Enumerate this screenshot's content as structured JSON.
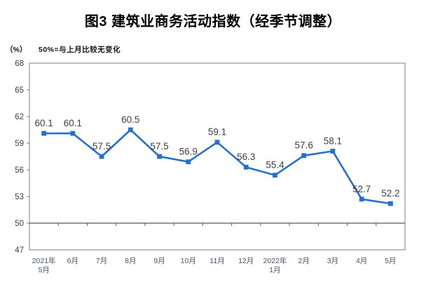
{
  "header": {
    "title": "图3 建筑业商务活动指数（经季节调整）",
    "unit_label": "（%）",
    "note": "50%=与上月比较无变化"
  },
  "colors": {
    "line": "#2770C8",
    "marker": "#2770C8",
    "data_label": "#3F3F3F",
    "y_tick_label": "#3F3F3F",
    "x_tick_label": "#44546A",
    "plot_border": "#7F7F7F",
    "reference_line": "#595959",
    "background": "#FFFFFF"
  },
  "chart_data": {
    "type": "line",
    "title": "图3 建筑业商务活动指数（经季节调整）",
    "subtitle": "50%=与上月比较无变化",
    "unit": "（%）",
    "categories": [
      "2021年\n5月",
      "6月",
      "7月",
      "8月",
      "9月",
      "10月",
      "11月",
      "12月",
      "2022年\n1月",
      "2月",
      "3月",
      "4月",
      "5月"
    ],
    "values": [
      60.1,
      60.1,
      57.5,
      60.5,
      57.5,
      56.9,
      59.1,
      56.3,
      55.4,
      57.6,
      58.1,
      52.7,
      52.2
    ],
    "series_name": "建筑业商务活动指数",
    "xlabel": "",
    "ylabel": "%",
    "ylim": [
      47,
      68
    ],
    "ytick_step": 3,
    "ytick_labels": [
      "47",
      "50",
      "53",
      "56",
      "59",
      "62",
      "65",
      "68"
    ],
    "reference_line": 50,
    "grid": false,
    "legend_position": "none",
    "marker": "square",
    "data_labels_shown": true
  }
}
